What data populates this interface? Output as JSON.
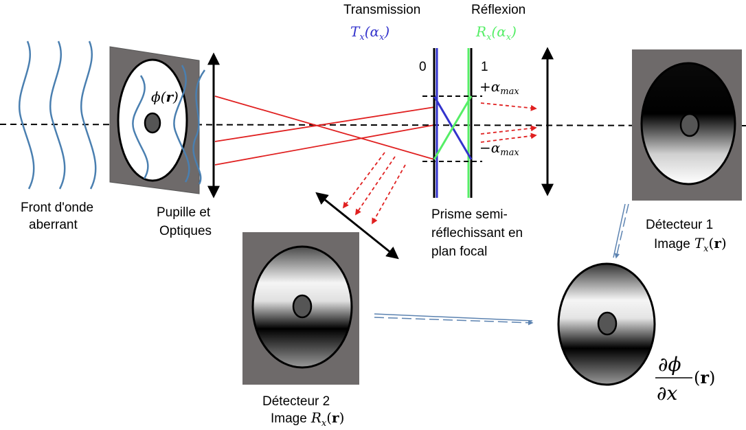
{
  "labels": {
    "front_line1": "Front d'onde",
    "front_line2": "aberrant",
    "pupil_line1": "Pupille et",
    "pupil_line2": "Optiques",
    "prism_line1": "Prisme semi-",
    "prism_line2": "réflechissant en",
    "prism_line3": "plan focal",
    "transmission": "Transmission",
    "reflexion": "Réflexion",
    "scale_zero": "0",
    "scale_one": "1",
    "det1_line1": "Détecteur 1",
    "det1_line2": "Image",
    "det2_line1": "Détecteur 2",
    "det2_line2": "Image"
  },
  "math": {
    "phi": "ϕ",
    "r": "r",
    "T": "T",
    "R": "R",
    "x": "x",
    "alpha": "α",
    "max": "max",
    "plus": "+",
    "minus": "−",
    "partial": "∂",
    "open": "(",
    "close": ")"
  },
  "colors": {
    "transmission": "#3333cc",
    "reflexion": "#55ee66",
    "ray": "#e02020",
    "wave": "#4a7fb0",
    "detector": "#6e6a6a"
  }
}
